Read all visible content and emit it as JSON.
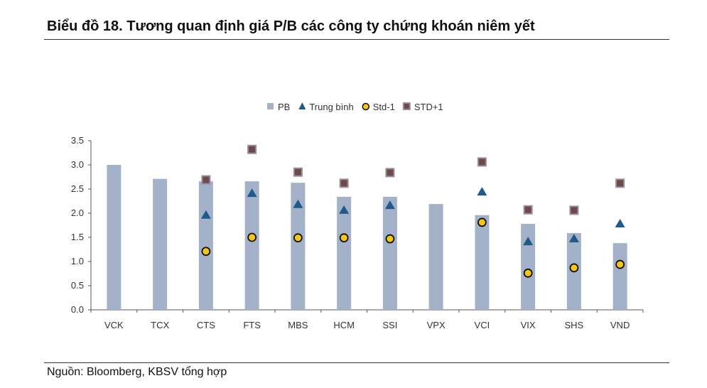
{
  "title": "Biểu đồ 18. Tương quan định giá P/B các công ty chứng khoán niêm yết",
  "source": "Nguồn: Bloomberg, KBSV tổng hợp",
  "chart_data": {
    "type": "bar",
    "categories": [
      "VCK",
      "TCX",
      "CTS",
      "FTS",
      "MBS",
      "HCM",
      "SSI",
      "VPX",
      "VCI",
      "VIX",
      "SHS",
      "VND"
    ],
    "ylim": [
      0,
      3.5
    ],
    "yticks": [
      "0.0",
      "0.5",
      "1.0",
      "1.5",
      "2.0",
      "2.5",
      "3.0",
      "3.5"
    ],
    "legend_position": "top",
    "grid": false,
    "series": [
      {
        "name": "PB",
        "kind": "bar",
        "color": "#a3b2c9",
        "values": [
          3.0,
          2.71,
          2.66,
          2.66,
          2.63,
          2.34,
          2.34,
          2.19,
          1.96,
          1.78,
          1.59,
          1.38
        ]
      },
      {
        "name": "Trung bình",
        "kind": "triangle",
        "color": "#215a88",
        "values": [
          null,
          null,
          1.96,
          2.41,
          2.18,
          2.06,
          2.16,
          null,
          2.44,
          1.41,
          1.47,
          1.78
        ]
      },
      {
        "name": "Std-1",
        "kind": "circle",
        "color": "#f5c518",
        "values": [
          null,
          null,
          1.21,
          1.5,
          1.49,
          1.49,
          1.47,
          null,
          1.81,
          0.76,
          0.87,
          0.94
        ]
      },
      {
        "name": "STD+1",
        "kind": "square",
        "color": "#6b4a48",
        "values": [
          null,
          null,
          2.69,
          3.32,
          2.85,
          2.62,
          2.84,
          null,
          3.06,
          2.07,
          2.06,
          2.62
        ]
      }
    ]
  }
}
